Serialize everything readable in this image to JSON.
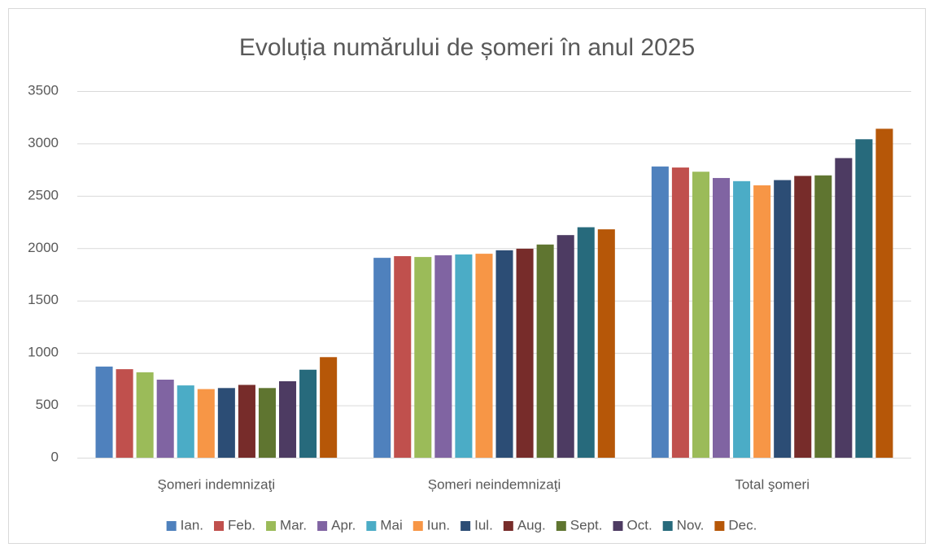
{
  "chart_data": {
    "type": "bar",
    "title": "Evoluția numărului de șomeri în anul 2025",
    "categories": [
      "Şomeri indemnizaţi",
      "Șomeri neindemnizaţi",
      "Total şomeri"
    ],
    "series": [
      {
        "name": "Ian.",
        "color": "#4f81bd",
        "values": [
          870,
          1908,
          2780
        ]
      },
      {
        "name": "Feb.",
        "color": "#c0504d",
        "values": [
          845,
          1924,
          2770
        ]
      },
      {
        "name": "Mar.",
        "color": "#9bbb59",
        "values": [
          815,
          1916,
          2730
        ]
      },
      {
        "name": "Apr.",
        "color": "#8064a2",
        "values": [
          745,
          1932,
          2670
        ]
      },
      {
        "name": "Mai",
        "color": "#4bacc6",
        "values": [
          690,
          1940,
          2640
        ]
      },
      {
        "name": "Iun.",
        "color": "#f79646",
        "values": [
          655,
          1947,
          2600
        ]
      },
      {
        "name": "Iul.",
        "color": "#2c4d75",
        "values": [
          665,
          1980,
          2650
        ]
      },
      {
        "name": "Aug.",
        "color": "#772c2a",
        "values": [
          695,
          1995,
          2690
        ]
      },
      {
        "name": "Sept.",
        "color": "#5f7530",
        "values": [
          665,
          2035,
          2695
        ]
      },
      {
        "name": "Oct.",
        "color": "#4d3b62",
        "values": [
          730,
          2125,
          2860
        ]
      },
      {
        "name": "Nov.",
        "color": "#276a7c",
        "values": [
          840,
          2200,
          3040
        ]
      },
      {
        "name": "Dec.",
        "color": "#b65708",
        "values": [
          960,
          2180,
          3140
        ]
      }
    ],
    "ylim": [
      0,
      3500
    ],
    "yticks": [
      0,
      500,
      1000,
      1500,
      2000,
      2500,
      3000,
      3500
    ],
    "grid": true,
    "legend": "bottom"
  }
}
